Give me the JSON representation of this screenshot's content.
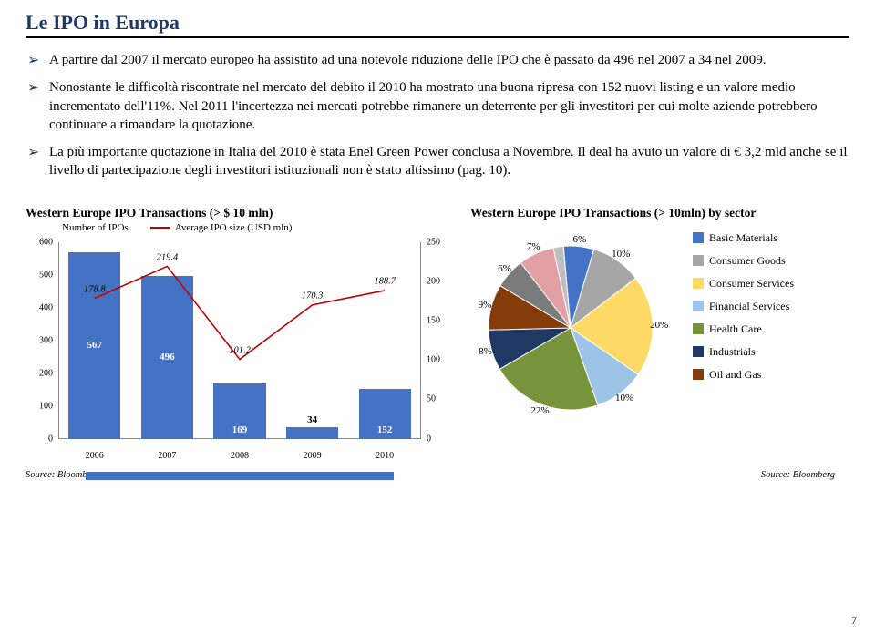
{
  "title": "Le IPO in Europa",
  "bullets": [
    "A partire dal 2007 il mercato europeo ha assistito ad una notevole riduzione delle IPO che è passato da 496 nel 2007 a 34 nel 2009.",
    "Nonostante le difficoltà riscontrate nel mercato del debito il 2010 ha mostrato una buona ripresa con 152 nuovi listing e un valore medio incrementato dell'11%. Nel 2011 l'incertezza nei mercati potrebbe rimanere un deterrente per gli investitori per cui molte aziende potrebbero continuare a rimandare la quotazione.",
    "La più importante quotazione in Italia del 2010 è stata Enel Green Power conclusa a Novembre. Il deal ha avuto un valore di € 3,2 mld anche se il livello di partecipazione degli investitori istituzionali non è stato altissimo (pag. 10)."
  ],
  "bar_chart": {
    "title": "Western Europe IPO Transactions (> $ 10 mln)",
    "legend_bar": "Number of IPOs",
    "legend_line": "Average IPO size (USD mln)",
    "x_labels": [
      "2006",
      "2007",
      "2008",
      "2009",
      "2010"
    ],
    "bar_values": [
      567,
      496,
      169,
      34,
      152
    ],
    "bar_color": "#4472c4",
    "y_left_max": 600,
    "y_left_step": 100,
    "line_values": [
      178.8,
      219.4,
      101.2,
      170.3,
      188.7
    ],
    "line_color": "#c00000",
    "y_right_max": 250,
    "y_right_step": 50,
    "source": "Source: Bloomberg"
  },
  "pie_chart": {
    "title": "Western Europe IPO Transactions (> 10mln) by sector",
    "slices": [
      {
        "label": "Basic Materials",
        "pct": 6,
        "color": "#4472c4"
      },
      {
        "label": "Consumer Goods",
        "pct": 10,
        "color": "#a6a6a6"
      },
      {
        "label": "Consumer Services",
        "pct": 20,
        "color": "#ffd966"
      },
      {
        "label": "Financial Services",
        "pct": 10,
        "color": "#9dc3e6"
      },
      {
        "label": "Health Care",
        "pct": 22,
        "color": "#77933c"
      },
      {
        "label": "Industrials",
        "pct": 8,
        "color": "#203864"
      },
      {
        "label": "Oil and Gas",
        "pct": 9,
        "color": "#843c0b"
      },
      {
        "label": "_rest1",
        "pct": 6,
        "color": "#7b7b7b",
        "hide_legend": true
      },
      {
        "label": "_rest2",
        "pct": 7,
        "color": "#e2a0a5",
        "hide_legend": true
      },
      {
        "label": "_rest3",
        "pct": 2,
        "color": "#bfbfbf",
        "hide_legend": true
      }
    ],
    "start_angle": -95,
    "label_pcts": [
      "6%",
      "10%",
      "20%",
      "10%",
      "22%",
      "8%",
      "9%",
      "6%",
      "7%"
    ],
    "source": "Source: Bloomberg"
  },
  "page_number": "7"
}
